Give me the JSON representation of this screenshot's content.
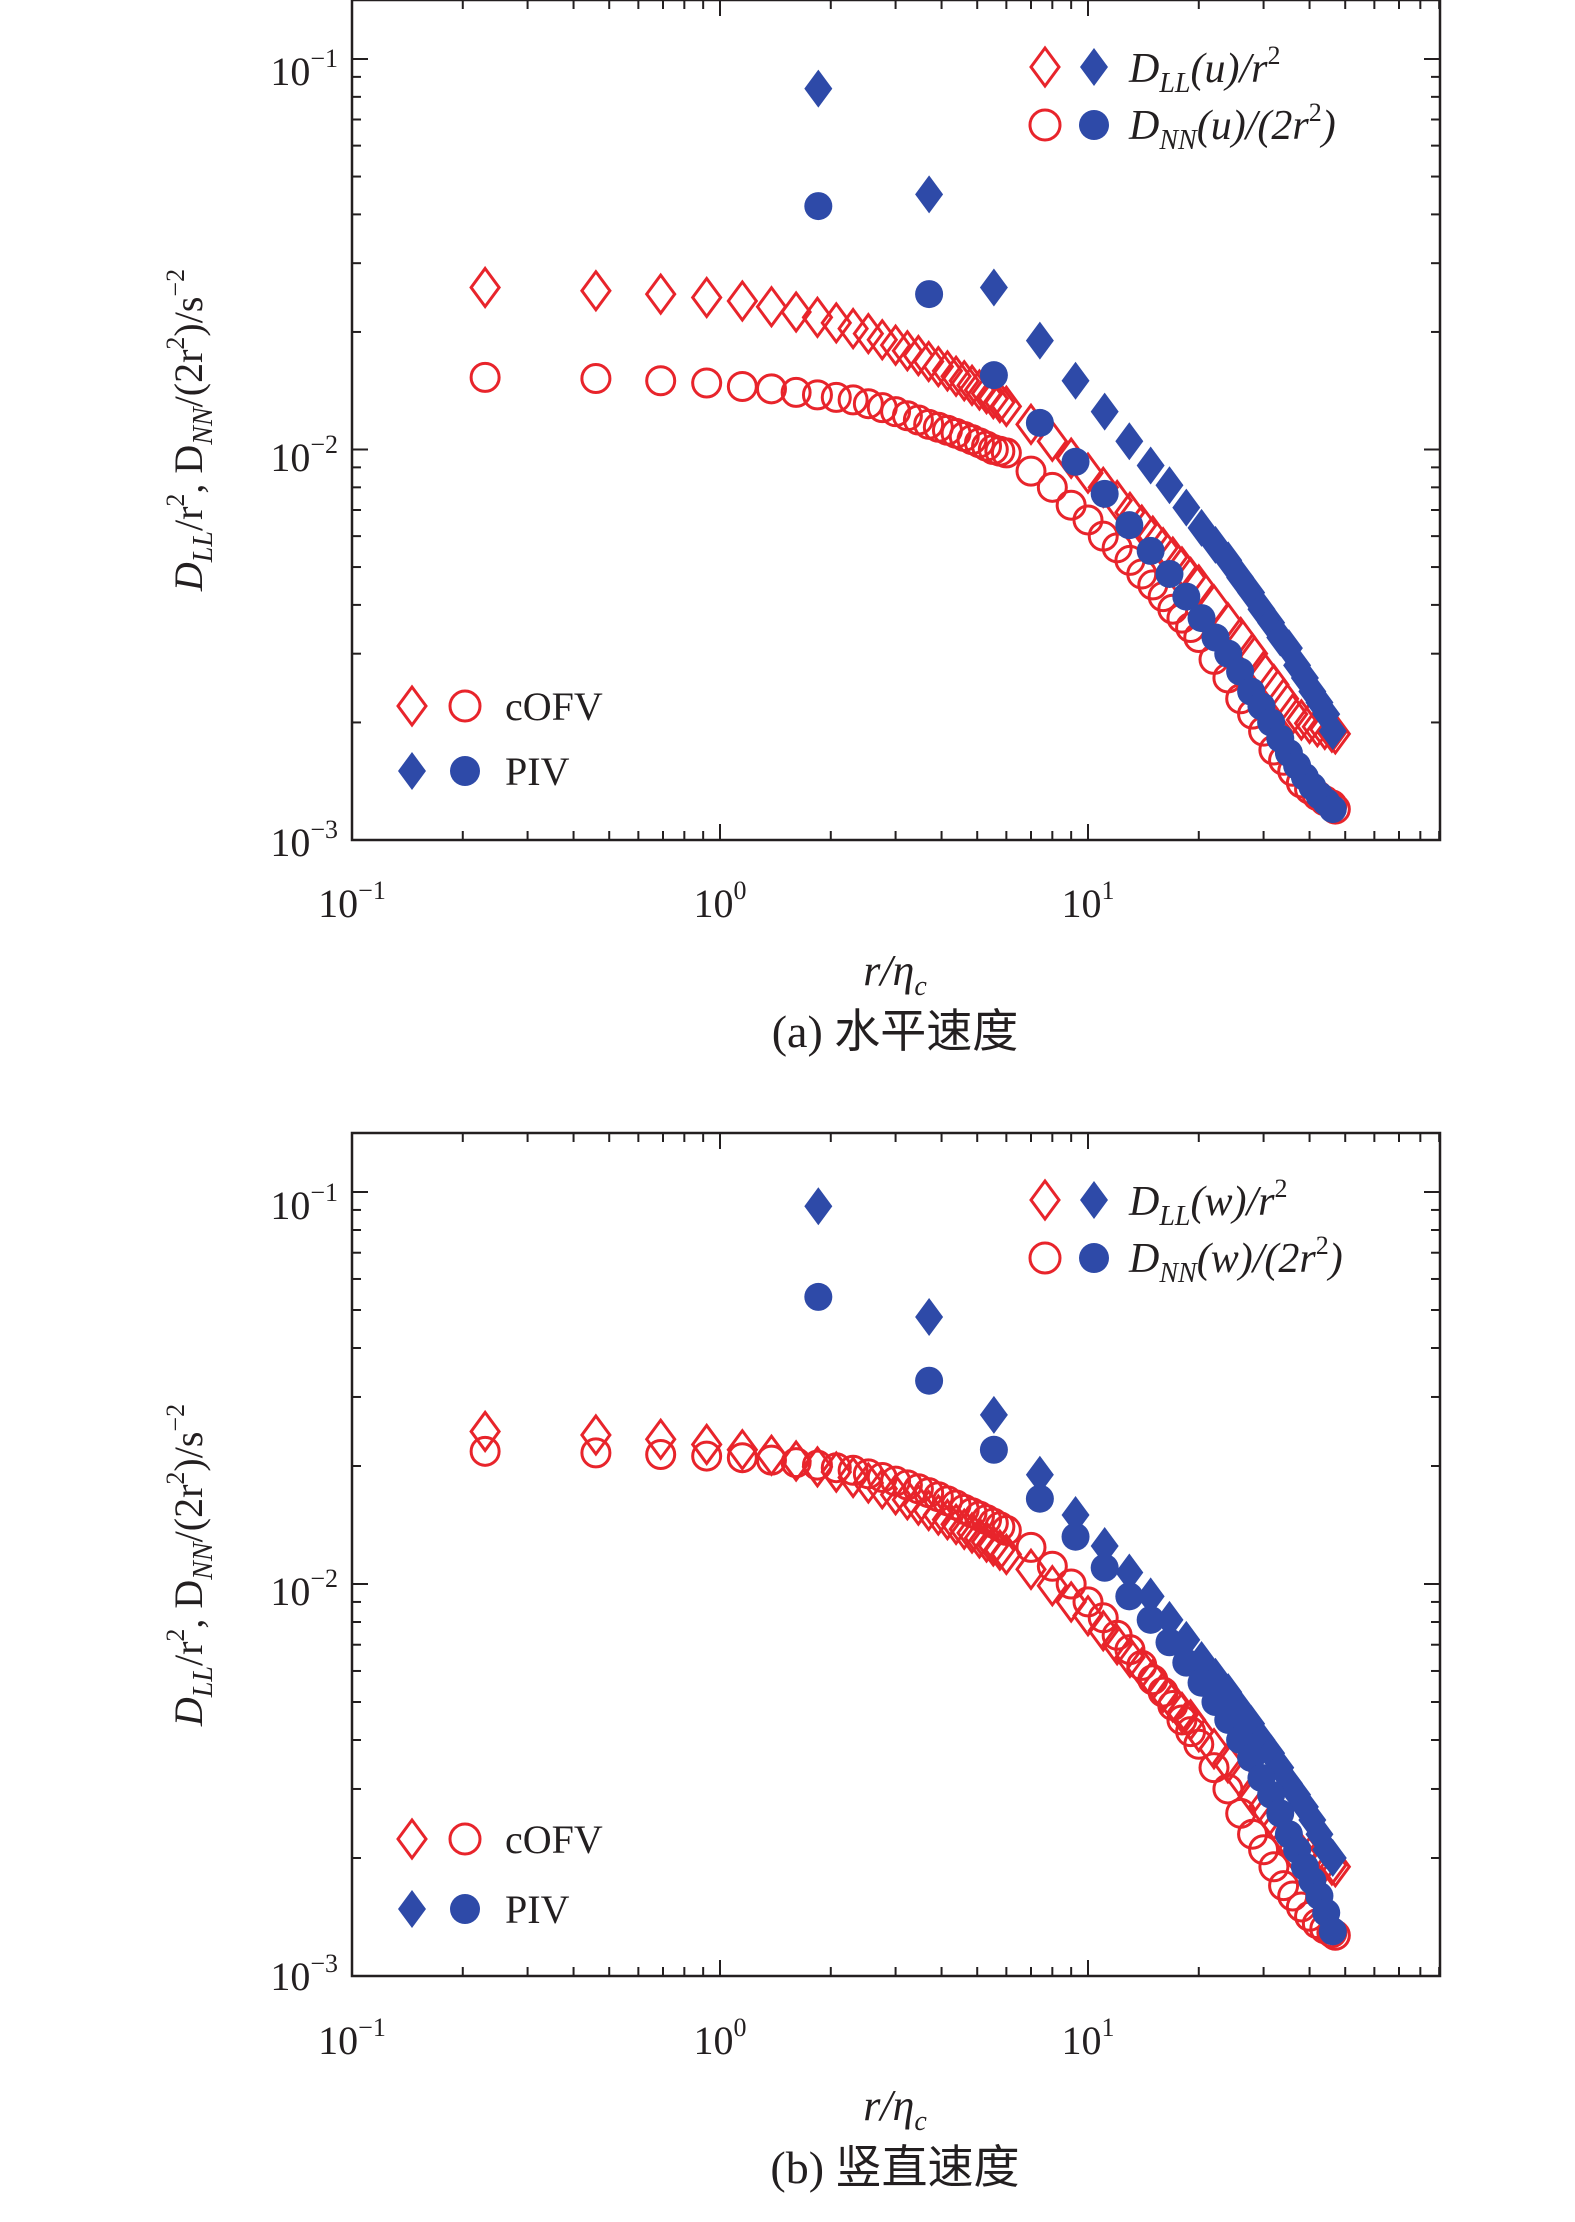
{
  "figure": {
    "colors": {
      "cofv": "#e8242b",
      "piv": "#2e4aa8",
      "axis": "#231f20"
    }
  },
  "chart_data": [
    {
      "id": "a",
      "type": "scatter",
      "scale": "log-log",
      "caption": "(a) 水平速度",
      "xlabel": {
        "base": "r/η",
        "sub": "c"
      },
      "ylabel": {
        "p1": "D",
        "s1": "LL",
        "p2": "/r",
        "e1": "2",
        "p3": ", D",
        "s2": "NN",
        "p4": "/(2r",
        "e2": "2",
        "p5": ")/s",
        "e3": "−2"
      },
      "xlim": [
        0.1,
        90
      ],
      "ylim": [
        0.001,
        0.15
      ],
      "xticks": [
        {
          "base": "10",
          "exp": "−1"
        },
        {
          "base": "10",
          "exp": "0"
        },
        {
          "base": "10",
          "exp": "1"
        }
      ],
      "yticks": [
        {
          "base": "10",
          "exp": "−3"
        },
        {
          "base": "10",
          "exp": "−2"
        },
        {
          "base": "10",
          "exp": "−1"
        }
      ],
      "legend_series": {
        "dll_a": "D",
        "dll_b": "LL",
        "dll_c": "(u)/r",
        "dll_d": "2",
        "dnn_a": "D",
        "dnn_b": "NN",
        "dnn_c": "(u)/(2r",
        "dnn_d": "2",
        "dnn_e": ")"
      },
      "legend_source": {
        "cofv": "cOFV",
        "piv": "PIV"
      },
      "series": [
        {
          "name": "cOFV D_LL/r^2",
          "marker": "diamond-open",
          "x": [
            0.23,
            0.46,
            0.69,
            0.92,
            1.15,
            1.38,
            1.61,
            1.84,
            2.07,
            2.3,
            2.53,
            2.76,
            3.0,
            3.23,
            3.46,
            3.69,
            3.92,
            4.15,
            4.38,
            4.61,
            4.84,
            5.07,
            5.3,
            5.53,
            5.76,
            6.0,
            7.0,
            8.0,
            9.0,
            10.0,
            11.0,
            12.0,
            13.0,
            14.0,
            15.0,
            16.0,
            17.0,
            18.0,
            19.0,
            20.0,
            22.0,
            24.0,
            26.0,
            28.0,
            30.0,
            32.0,
            34.0,
            36.0,
            38.0,
            40.0,
            42.0,
            44.0,
            46.0,
            47.0
          ],
          "y": [
            0.026,
            0.0255,
            0.025,
            0.0245,
            0.024,
            0.0232,
            0.0225,
            0.0218,
            0.0211,
            0.0204,
            0.0198,
            0.0191,
            0.0185,
            0.0179,
            0.0174,
            0.0168,
            0.0163,
            0.0159,
            0.0154,
            0.015,
            0.0146,
            0.0142,
            0.0139,
            0.0135,
            0.0132,
            0.0129,
            0.0116,
            0.0105,
            0.0095,
            0.0087,
            0.008,
            0.0074,
            0.0069,
            0.0064,
            0.006,
            0.0056,
            0.0053,
            0.005,
            0.0047,
            0.0045,
            0.004,
            0.0036,
            0.0033,
            0.003,
            0.0027,
            0.0025,
            0.0023,
            0.0021,
            0.00203,
            0.00199,
            0.00195,
            0.00192,
            0.00189,
            0.00187
          ]
        },
        {
          "name": "cOFV D_NN/(2r^2)",
          "marker": "circle-open",
          "x": [
            0.23,
            0.46,
            0.69,
            0.92,
            1.15,
            1.38,
            1.61,
            1.84,
            2.07,
            2.3,
            2.53,
            2.76,
            3.0,
            3.23,
            3.46,
            3.69,
            3.92,
            4.15,
            4.38,
            4.61,
            4.84,
            5.07,
            5.3,
            5.53,
            5.76,
            6.0,
            7.0,
            8.0,
            9.0,
            10.0,
            11.0,
            12.0,
            13.0,
            14.0,
            15.0,
            16.0,
            17.0,
            18.0,
            19.0,
            20.0,
            22.0,
            24.0,
            26.0,
            28.0,
            30.0,
            32.0,
            34.0,
            36.0,
            38.0,
            40.0,
            42.0,
            44.0,
            46.0,
            47.0
          ],
          "y": [
            0.0153,
            0.0152,
            0.015,
            0.0148,
            0.0145,
            0.0143,
            0.014,
            0.0138,
            0.0136,
            0.0134,
            0.0131,
            0.0128,
            0.0125,
            0.0122,
            0.0119,
            0.0116,
            0.0114,
            0.0112,
            0.011,
            0.0108,
            0.0106,
            0.0104,
            0.0102,
            0.01,
            0.0099,
            0.0098,
            0.0088,
            0.008,
            0.0072,
            0.0066,
            0.006,
            0.0056,
            0.0052,
            0.0048,
            0.0045,
            0.0042,
            0.0039,
            0.0037,
            0.0035,
            0.0033,
            0.0029,
            0.0026,
            0.0023,
            0.0021,
            0.0019,
            0.0017,
            0.0016,
            0.0015,
            0.0014,
            0.00135,
            0.0013,
            0.00126,
            0.00123,
            0.0012
          ]
        },
        {
          "name": "PIV D_LL/r^2",
          "marker": "diamond-filled",
          "x": [
            1.85,
            3.7,
            5.55,
            7.4,
            9.25,
            11.1,
            12.95,
            14.8,
            16.65,
            18.5,
            20.35,
            22.2,
            24.05,
            25.9,
            27.75,
            29.6,
            31.45,
            33.3,
            35.15,
            37.0,
            38.85,
            40.7,
            42.55,
            44.4,
            46.25
          ],
          "y": [
            0.084,
            0.045,
            0.026,
            0.019,
            0.015,
            0.0125,
            0.0105,
            0.0091,
            0.0081,
            0.0071,
            0.0063,
            0.0057,
            0.0052,
            0.0047,
            0.0043,
            0.0039,
            0.0036,
            0.0033,
            0.0031,
            0.0028,
            0.0026,
            0.0024,
            0.00225,
            0.0021,
            0.0019
          ]
        },
        {
          "name": "PIV D_NN/(2r^2)",
          "marker": "circle-filled",
          "x": [
            1.85,
            3.7,
            5.55,
            7.4,
            9.25,
            11.1,
            12.95,
            14.8,
            16.65,
            18.5,
            20.35,
            22.2,
            24.05,
            25.9,
            27.75,
            29.6,
            31.45,
            33.3,
            35.15,
            37.0,
            38.85,
            40.7,
            42.55,
            44.4,
            46.25
          ],
          "y": [
            0.042,
            0.025,
            0.0155,
            0.0117,
            0.0093,
            0.0077,
            0.0064,
            0.0055,
            0.0048,
            0.0042,
            0.0037,
            0.0033,
            0.003,
            0.0027,
            0.0024,
            0.0022,
            0.002,
            0.00182,
            0.00167,
            0.00155,
            0.00145,
            0.00137,
            0.0013,
            0.00125,
            0.0012
          ]
        }
      ]
    },
    {
      "id": "b",
      "type": "scatter",
      "scale": "log-log",
      "caption": "(b) 竖直速度",
      "xlabel": {
        "base": "r/η",
        "sub": "c"
      },
      "ylabel": {
        "p1": "D",
        "s1": "LL",
        "p2": "/r",
        "e1": "2",
        "p3": ", D",
        "s2": "NN",
        "p4": "/(2r",
        "e2": "2",
        "p5": ")/s",
        "e3": "−2"
      },
      "xlim": [
        0.1,
        90
      ],
      "ylim": [
        0.001,
        0.15
      ],
      "xticks": [
        {
          "base": "10",
          "exp": "−1"
        },
        {
          "base": "10",
          "exp": "0"
        },
        {
          "base": "10",
          "exp": "1"
        }
      ],
      "yticks": [
        {
          "base": "10",
          "exp": "−3"
        },
        {
          "base": "10",
          "exp": "−2"
        },
        {
          "base": "10",
          "exp": "−1"
        }
      ],
      "legend_series": {
        "dll_a": "D",
        "dll_b": "LL",
        "dll_c": "(w)/r",
        "dll_d": "2",
        "dnn_a": "D",
        "dnn_b": "NN",
        "dnn_c": "(w)/(2r",
        "dnn_d": "2",
        "dnn_e": ")"
      },
      "legend_source": {
        "cofv": "cOFV",
        "piv": "PIV"
      },
      "series": [
        {
          "name": "cOFV D_LL/r^2",
          "marker": "diamond-open",
          "x": [
            0.23,
            0.46,
            0.69,
            0.92,
            1.15,
            1.38,
            1.61,
            1.84,
            2.07,
            2.3,
            2.53,
            2.76,
            3.0,
            3.23,
            3.46,
            3.69,
            3.92,
            4.15,
            4.38,
            4.61,
            4.84,
            5.07,
            5.3,
            5.53,
            5.76,
            6.0,
            7.0,
            8.0,
            9.0,
            10.0,
            11.0,
            12.0,
            13.0,
            14.0,
            15.0,
            16.0,
            17.0,
            18.0,
            19.0,
            20.0,
            22.0,
            24.0,
            26.0,
            28.0,
            30.0,
            32.0,
            34.0,
            36.0,
            38.0,
            40.0,
            42.0,
            44.0,
            46.0,
            47.0
          ],
          "y": [
            0.0245,
            0.024,
            0.0234,
            0.0227,
            0.022,
            0.0213,
            0.0206,
            0.0199,
            0.0193,
            0.0187,
            0.0181,
            0.0175,
            0.0169,
            0.0164,
            0.0159,
            0.0154,
            0.015,
            0.0146,
            0.0142,
            0.0138,
            0.0135,
            0.0131,
            0.0128,
            0.0125,
            0.0122,
            0.0119,
            0.0109,
            0.0099,
            0.009,
            0.0083,
            0.0076,
            0.007,
            0.0065,
            0.0061,
            0.0057,
            0.0053,
            0.005,
            0.0047,
            0.0045,
            0.0042,
            0.0038,
            0.0035,
            0.0032,
            0.0029,
            0.0027,
            0.0025,
            0.0023,
            0.0021,
            0.00205,
            0.00201,
            0.00198,
            0.00195,
            0.00192,
            0.0019
          ]
        },
        {
          "name": "cOFV D_NN/(2r^2)",
          "marker": "circle-open",
          "x": [
            0.23,
            0.46,
            0.69,
            0.92,
            1.15,
            1.38,
            1.61,
            1.84,
            2.07,
            2.3,
            2.53,
            2.76,
            3.0,
            3.23,
            3.46,
            3.69,
            3.92,
            4.15,
            4.38,
            4.61,
            4.84,
            5.07,
            5.3,
            5.53,
            5.76,
            6.0,
            7.0,
            8.0,
            9.0,
            10.0,
            11.0,
            12.0,
            13.0,
            14.0,
            15.0,
            16.0,
            17.0,
            18.0,
            19.0,
            20.0,
            22.0,
            24.0,
            26.0,
            28.0,
            30.0,
            32.0,
            34.0,
            36.0,
            38.0,
            40.0,
            42.0,
            44.0,
            46.0,
            47.0
          ],
          "y": [
            0.0218,
            0.0216,
            0.0214,
            0.0212,
            0.021,
            0.0207,
            0.0204,
            0.0201,
            0.0198,
            0.0195,
            0.0191,
            0.0187,
            0.0183,
            0.0179,
            0.0175,
            0.0171,
            0.0167,
            0.0163,
            0.0159,
            0.0155,
            0.0152,
            0.0149,
            0.0146,
            0.0143,
            0.014,
            0.0137,
            0.0124,
            0.0111,
            0.01,
            0.009,
            0.0082,
            0.0074,
            0.0068,
            0.0062,
            0.0057,
            0.0053,
            0.0049,
            0.0045,
            0.0042,
            0.0039,
            0.0034,
            0.003,
            0.0026,
            0.0023,
            0.0021,
            0.0019,
            0.0017,
            0.0016,
            0.0015,
            0.00142,
            0.00136,
            0.00132,
            0.00129,
            0.00127
          ]
        },
        {
          "name": "PIV D_LL/r^2",
          "marker": "diamond-filled",
          "x": [
            1.85,
            3.7,
            5.55,
            7.4,
            9.25,
            11.1,
            12.95,
            14.8,
            16.65,
            18.5,
            20.35,
            22.2,
            24.05,
            25.9,
            27.75,
            29.6,
            31.45,
            33.3,
            35.15,
            37.0,
            38.85,
            40.7,
            42.55,
            44.4,
            46.25
          ],
          "y": [
            0.092,
            0.048,
            0.027,
            0.019,
            0.015,
            0.0125,
            0.0107,
            0.0093,
            0.0081,
            0.0072,
            0.0064,
            0.0058,
            0.0053,
            0.0048,
            0.0044,
            0.004,
            0.0037,
            0.0034,
            0.0031,
            0.0029,
            0.0027,
            0.0025,
            0.0023,
            0.0021,
            0.002
          ]
        },
        {
          "name": "PIV D_NN/(2r^2)",
          "marker": "circle-filled",
          "x": [
            1.85,
            3.7,
            5.55,
            7.4,
            9.25,
            11.1,
            12.95,
            14.8,
            16.65,
            18.5,
            20.35,
            22.2,
            24.05,
            25.9,
            27.75,
            29.6,
            31.45,
            33.3,
            35.15,
            37.0,
            38.85,
            40.7,
            42.55,
            44.4,
            46.25
          ],
          "y": [
            0.054,
            0.033,
            0.022,
            0.0165,
            0.0132,
            0.011,
            0.0093,
            0.0081,
            0.0071,
            0.0063,
            0.0056,
            0.005,
            0.0045,
            0.004,
            0.0036,
            0.0032,
            0.0029,
            0.0026,
            0.0023,
            0.0021,
            0.0019,
            0.00175,
            0.0016,
            0.00145,
            0.0013
          ]
        }
      ]
    }
  ]
}
